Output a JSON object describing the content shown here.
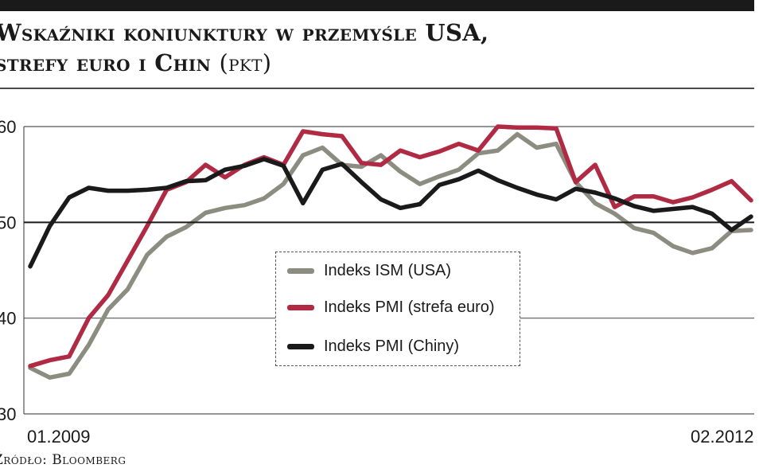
{
  "header": {
    "title": "Wskaźniki koniunktury w przemyśle USA,",
    "title_line2": "strefy euro i Chin",
    "title_unit": "(pkt)"
  },
  "source": "Źródło: Bloomberg",
  "chart_data": {
    "type": "line",
    "title": "Wskaźniki koniunktury w przemyśle USA, strefy euro i Chin (pkt)",
    "xlabel": "",
    "ylabel": "",
    "ylim": [
      30,
      60
    ],
    "yticks": [
      30,
      40,
      50,
      60
    ],
    "ytick_labels": [
      "30",
      "40",
      "50",
      "60"
    ],
    "xticks": [
      "01.2009",
      "02.2012"
    ],
    "reference_line": 50,
    "grid": true,
    "legend_position": "center",
    "x": [
      "01.2009",
      "02.2009",
      "03.2009",
      "04.2009",
      "05.2009",
      "06.2009",
      "07.2009",
      "08.2009",
      "09.2009",
      "10.2009",
      "11.2009",
      "12.2009",
      "01.2010",
      "02.2010",
      "03.2010",
      "04.2010",
      "05.2010",
      "06.2010",
      "07.2010",
      "08.2010",
      "09.2010",
      "10.2010",
      "11.2010",
      "12.2010",
      "01.2011",
      "02.2011",
      "03.2011",
      "04.2011",
      "05.2011",
      "06.2011",
      "07.2011",
      "08.2011",
      "09.2011",
      "10.2011",
      "11.2011",
      "12.2011",
      "01.2012",
      "02.2012"
    ],
    "series": [
      {
        "name": "Indeks ISM (USA)",
        "color": "#8c8c80",
        "values": [
          34.8,
          33.8,
          34.2,
          37.2,
          40.9,
          43.0,
          46.6,
          48.5,
          49.5,
          51.0,
          51.5,
          51.8,
          52.5,
          54.0,
          57.0,
          57.8,
          56.0,
          55.8,
          57.0,
          55.3,
          54.0,
          54.8,
          55.5,
          57.2,
          57.5,
          59.2,
          57.8,
          58.2,
          54.2,
          52.0,
          50.9,
          49.4,
          48.9,
          47.5,
          46.8,
          47.3,
          49.1,
          49.2
        ]
      },
      {
        "name": "Indeks PMI (strefa euro)",
        "color": "#b02a44",
        "values": [
          35.0,
          35.6,
          36.0,
          40.0,
          42.4,
          46.0,
          49.6,
          53.4,
          54.2,
          56.0,
          54.7,
          56.0,
          56.8,
          56.0,
          59.5,
          59.2,
          59.0,
          56.2,
          56.0,
          57.5,
          56.8,
          57.4,
          58.2,
          57.5,
          60.0,
          59.9,
          59.9,
          59.8,
          54.2,
          56.0,
          51.6,
          52.7,
          52.7,
          52.1,
          52.6,
          53.4,
          54.3,
          52.3
        ]
      },
      {
        "name": "Indeks PMI (Chiny)",
        "color": "#1a1a1a",
        "values": [
          45.4,
          49.6,
          52.6,
          53.6,
          53.3,
          53.3,
          53.4,
          53.6,
          54.3,
          54.4,
          55.5,
          55.9,
          56.6,
          55.9,
          52.0,
          55.5,
          56.1,
          54.2,
          52.4,
          51.5,
          51.9,
          53.9,
          54.5,
          55.4,
          54.4,
          53.6,
          52.9,
          52.4,
          53.5,
          53.1,
          52.5,
          51.7,
          51.2,
          51.4,
          51.6,
          50.9,
          49.2,
          50.6
        ]
      }
    ]
  }
}
